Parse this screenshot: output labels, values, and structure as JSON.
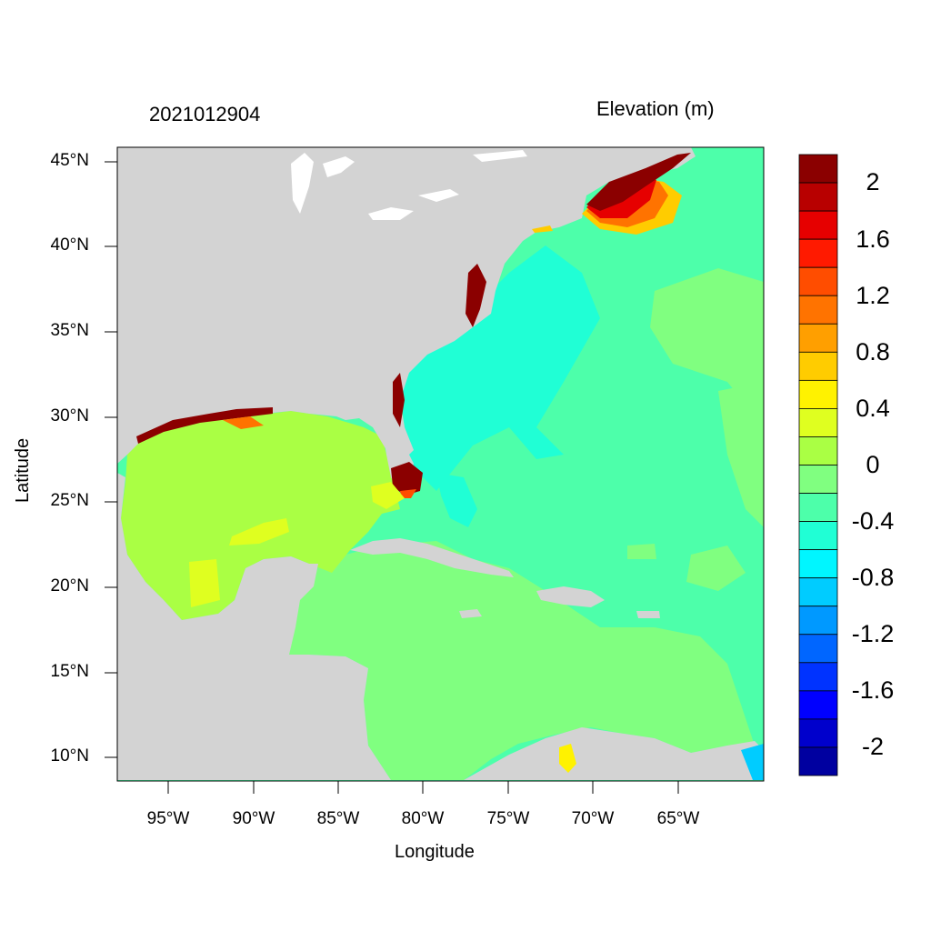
{
  "titles": {
    "left": "2021012904",
    "right": "Elevation (m)"
  },
  "axes": {
    "x_label": "Longitude",
    "y_label": "Latitude",
    "x_ticks": [
      "95°W",
      "90°W",
      "85°W",
      "80°W",
      "75°W",
      "70°W",
      "65°W"
    ],
    "y_ticks": [
      "45°N",
      "40°N",
      "35°N",
      "30°N",
      "25°N",
      "20°N",
      "15°N",
      "10°N"
    ]
  },
  "colorbar": {
    "labels": [
      "2",
      "1.6",
      "1.2",
      "0.8",
      "0.4",
      "0",
      "-0.4",
      "-0.8",
      "-1.2",
      "-1.6",
      "-2"
    ],
    "colors": [
      "#8b0000",
      "#b80000",
      "#e60000",
      "#ff1a00",
      "#ff4d00",
      "#ff7300",
      "#ff9f00",
      "#ffcc00",
      "#fff200",
      "#dfff20",
      "#aaff44",
      "#80ff80",
      "#4dffaa",
      "#20ffd5",
      "#00f6ff",
      "#00ccff",
      "#0099ff",
      "#0066ff",
      "#0033ff",
      "#0000ff",
      "#0000cc",
      "#0000a0"
    ]
  },
  "colors": {
    "land": "#d3d3d3",
    "lakes": "#ffffff",
    "gulf": "#aaff44",
    "caribbean": "#80ff80",
    "atlantic_open": "#4dffaa",
    "atlantic_shelf": "#20ffd5",
    "surge_high": "#8b0000"
  }
}
